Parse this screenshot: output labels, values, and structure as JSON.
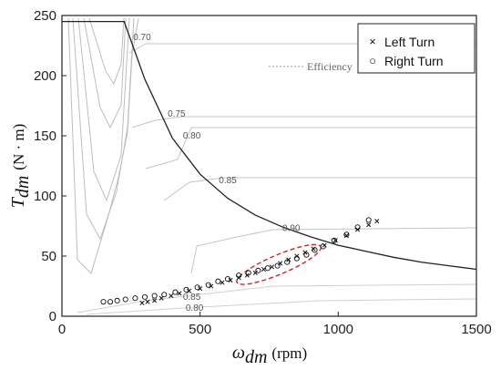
{
  "chart_data": {
    "type": "scatter",
    "xlim": [
      0,
      1500
    ],
    "ylim": [
      0,
      250
    ],
    "x_ticks": [
      "0",
      "500",
      "1000",
      "1500"
    ],
    "y_ticks": [
      "0",
      "50",
      "100",
      "150",
      "200",
      "250"
    ],
    "xlabel": {
      "symbol": "ω",
      "sub": "dm",
      "unit": "(rpm)"
    },
    "ylabel": {
      "symbol": "T",
      "sub": "dm",
      "unit": "(N · m)"
    },
    "legend": {
      "position": "top-right",
      "items": [
        {
          "marker": "×",
          "label": "Left Turn"
        },
        {
          "marker": "○",
          "label": "Right Turn"
        }
      ]
    },
    "efficiency_label": "Efficiency",
    "contour_labels": [
      {
        "text": "0.70",
        "x": 290,
        "y": 232
      },
      {
        "text": "0.75",
        "x": 415,
        "y": 168
      },
      {
        "text": "0.80",
        "x": 470,
        "y": 150
      },
      {
        "text": "0.85",
        "x": 600,
        "y": 113
      },
      {
        "text": "0.90",
        "x": 830,
        "y": 73
      },
      {
        "text": "0.85",
        "x": 470,
        "y": 16
      },
      {
        "text": "0.80",
        "x": 480,
        "y": 7
      }
    ],
    "envelope": [
      [
        0,
        245
      ],
      [
        225,
        245
      ],
      [
        300,
        197
      ],
      [
        400,
        148
      ],
      [
        500,
        118
      ],
      [
        600,
        98
      ],
      [
        700,
        84
      ],
      [
        800,
        74
      ],
      [
        900,
        66
      ],
      [
        1000,
        59
      ],
      [
        1100,
        54
      ],
      [
        1200,
        49
      ],
      [
        1300,
        45
      ],
      [
        1400,
        42
      ],
      [
        1500,
        39
      ]
    ],
    "series": [
      {
        "name": "Left Turn",
        "marker": "x",
        "points": [
          [
            290,
            11
          ],
          [
            310,
            12
          ],
          [
            335,
            13
          ],
          [
            360,
            15
          ],
          [
            395,
            17
          ],
          [
            425,
            19
          ],
          [
            460,
            21
          ],
          [
            500,
            23
          ],
          [
            540,
            25
          ],
          [
            580,
            28
          ],
          [
            610,
            30
          ],
          [
            640,
            32
          ],
          [
            670,
            34
          ],
          [
            700,
            36
          ],
          [
            730,
            39
          ],
          [
            760,
            41
          ],
          [
            790,
            44
          ],
          [
            820,
            47
          ],
          [
            850,
            50
          ],
          [
            880,
            53
          ],
          [
            910,
            56
          ],
          [
            950,
            59
          ],
          [
            990,
            63
          ],
          [
            1030,
            67
          ],
          [
            1070,
            72
          ],
          [
            1110,
            76
          ],
          [
            1140,
            79
          ]
        ]
      },
      {
        "name": "Right Turn",
        "marker": "o",
        "points": [
          [
            150,
            12
          ],
          [
            175,
            12
          ],
          [
            200,
            13
          ],
          [
            230,
            14
          ],
          [
            265,
            15
          ],
          [
            300,
            16
          ],
          [
            335,
            17
          ],
          [
            370,
            18
          ],
          [
            410,
            20
          ],
          [
            450,
            22
          ],
          [
            490,
            24
          ],
          [
            530,
            26
          ],
          [
            565,
            29
          ],
          [
            600,
            31
          ],
          [
            640,
            34
          ],
          [
            675,
            36
          ],
          [
            710,
            38
          ],
          [
            745,
            40
          ],
          [
            780,
            42
          ],
          [
            815,
            45
          ],
          [
            850,
            48
          ],
          [
            885,
            51
          ],
          [
            915,
            55
          ],
          [
            945,
            58
          ],
          [
            985,
            63
          ],
          [
            1030,
            68
          ],
          [
            1070,
            74
          ],
          [
            1110,
            80
          ]
        ]
      }
    ],
    "highlight_ellipse": {
      "cx": 785,
      "cy": 43,
      "rx": 165,
      "ry": 8,
      "angle_deg": -23
    }
  }
}
